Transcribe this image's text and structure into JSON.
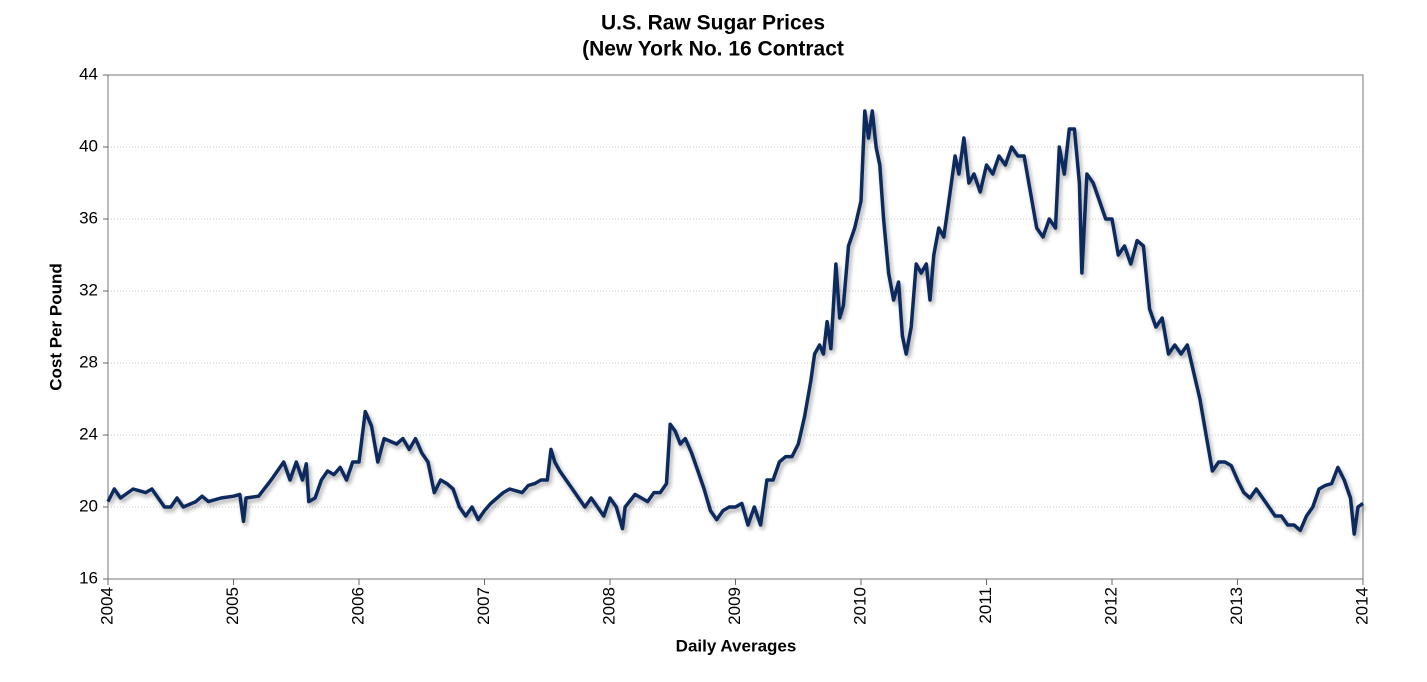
{
  "chart_data": {
    "type": "line",
    "title": "U.S. Raw Sugar Prices",
    "subtitle": "(New York No. 16 Contract",
    "x_label": "Daily Averages",
    "y_label": "Cost  Per  Pound",
    "grid": true,
    "xlim": [
      2004,
      2014
    ],
    "xticks": [
      2004,
      2005,
      2006,
      2007,
      2008,
      2009,
      2010,
      2011,
      2012,
      2013,
      2014
    ],
    "ylim": [
      16,
      44
    ],
    "yticks": [
      16,
      20,
      24,
      28,
      32,
      36,
      40,
      44
    ],
    "series": [
      {
        "name": "Raw Sugar",
        "color": "#0d2b5e",
        "x": [
          2004.0,
          2004.05,
          2004.1,
          2004.2,
          2004.3,
          2004.35,
          2004.4,
          2004.45,
          2004.5,
          2004.55,
          2004.6,
          2004.7,
          2004.75,
          2004.8,
          2004.9,
          2005.0,
          2005.05,
          2005.08,
          2005.1,
          2005.2,
          2005.3,
          2005.35,
          2005.4,
          2005.45,
          2005.5,
          2005.55,
          2005.58,
          2005.6,
          2005.65,
          2005.7,
          2005.75,
          2005.8,
          2005.85,
          2005.9,
          2005.95,
          2006.0,
          2006.05,
          2006.1,
          2006.15,
          2006.2,
          2006.3,
          2006.35,
          2006.4,
          2006.45,
          2006.5,
          2006.55,
          2006.6,
          2006.65,
          2006.7,
          2006.75,
          2006.8,
          2006.85,
          2006.9,
          2006.95,
          2007.0,
          2007.05,
          2007.1,
          2007.15,
          2007.2,
          2007.3,
          2007.35,
          2007.4,
          2007.45,
          2007.5,
          2007.53,
          2007.56,
          2007.6,
          2007.65,
          2007.7,
          2007.75,
          2007.8,
          2007.85,
          2007.9,
          2007.95,
          2008.0,
          2008.05,
          2008.1,
          2008.12,
          2008.2,
          2008.25,
          2008.3,
          2008.35,
          2008.4,
          2008.45,
          2008.48,
          2008.52,
          2008.56,
          2008.6,
          2008.65,
          2008.7,
          2008.75,
          2008.8,
          2008.85,
          2008.9,
          2008.95,
          2009.0,
          2009.05,
          2009.1,
          2009.15,
          2009.2,
          2009.25,
          2009.3,
          2009.35,
          2009.4,
          2009.45,
          2009.5,
          2009.55,
          2009.6,
          2009.63,
          2009.67,
          2009.7,
          2009.73,
          2009.76,
          2009.8,
          2009.83,
          2009.86,
          2009.9,
          2009.95,
          2010.0,
          2010.03,
          2010.06,
          2010.09,
          2010.12,
          2010.15,
          2010.18,
          2010.22,
          2010.26,
          2010.3,
          2010.33,
          2010.36,
          2010.4,
          2010.44,
          2010.48,
          2010.52,
          2010.55,
          2010.58,
          2010.62,
          2010.66,
          2010.7,
          2010.75,
          2010.78,
          2010.82,
          2010.86,
          2010.9,
          2010.95,
          2011.0,
          2011.05,
          2011.1,
          2011.15,
          2011.2,
          2011.25,
          2011.3,
          2011.35,
          2011.4,
          2011.45,
          2011.5,
          2011.55,
          2011.58,
          2011.62,
          2011.66,
          2011.7,
          2011.74,
          2011.76,
          2011.8,
          2011.85,
          2011.9,
          2011.95,
          2012.0,
          2012.05,
          2012.1,
          2012.15,
          2012.2,
          2012.25,
          2012.3,
          2012.35,
          2012.4,
          2012.45,
          2012.5,
          2012.55,
          2012.6,
          2012.65,
          2012.7,
          2012.75,
          2012.8,
          2012.85,
          2012.9,
          2012.95,
          2013.0,
          2013.05,
          2013.1,
          2013.15,
          2013.2,
          2013.25,
          2013.3,
          2013.35,
          2013.4,
          2013.45,
          2013.5,
          2013.55,
          2013.6,
          2013.65,
          2013.7,
          2013.75,
          2013.8,
          2013.85,
          2013.9,
          2013.93,
          2013.96,
          2014.0
        ],
        "values": [
          20.3,
          21.0,
          20.5,
          21.0,
          20.8,
          21.0,
          20.5,
          20.0,
          20.0,
          20.5,
          20.0,
          20.3,
          20.6,
          20.3,
          20.5,
          20.6,
          20.7,
          19.2,
          20.5,
          20.6,
          21.5,
          22.0,
          22.5,
          21.5,
          22.5,
          21.5,
          22.4,
          20.3,
          20.5,
          21.5,
          22.0,
          21.8,
          22.2,
          21.5,
          22.5,
          22.5,
          25.3,
          24.5,
          22.5,
          23.8,
          23.5,
          23.8,
          23.2,
          23.8,
          23.0,
          22.5,
          20.8,
          21.5,
          21.3,
          21.0,
          20.0,
          19.5,
          20.0,
          19.3,
          19.8,
          20.2,
          20.5,
          20.8,
          21.0,
          20.8,
          21.2,
          21.3,
          21.5,
          21.5,
          23.2,
          22.5,
          22.0,
          21.5,
          21.0,
          20.5,
          20.0,
          20.5,
          20.0,
          19.5,
          20.5,
          20.0,
          18.8,
          20.0,
          20.7,
          20.5,
          20.3,
          20.8,
          20.8,
          21.3,
          24.6,
          24.2,
          23.5,
          23.8,
          23.0,
          22.0,
          21.0,
          19.8,
          19.3,
          19.8,
          20.0,
          20.0,
          20.2,
          19.0,
          20.0,
          19.0,
          21.5,
          21.5,
          22.5,
          22.8,
          22.8,
          23.5,
          25.0,
          27.0,
          28.5,
          29.0,
          28.5,
          30.3,
          28.8,
          33.5,
          30.5,
          31.2,
          34.5,
          35.5,
          37.0,
          42.0,
          40.5,
          42.0,
          40.0,
          39.0,
          36.0,
          33.0,
          31.5,
          32.5,
          29.5,
          28.5,
          30.0,
          33.5,
          33.0,
          33.5,
          31.5,
          34.0,
          35.5,
          35.0,
          37.0,
          39.5,
          38.5,
          40.5,
          38.0,
          38.5,
          37.5,
          39.0,
          38.5,
          39.5,
          39.0,
          40.0,
          39.5,
          39.5,
          37.5,
          35.5,
          35.0,
          36.0,
          35.5,
          40.0,
          38.5,
          41.0,
          41.0,
          38.0,
          33.0,
          38.5,
          38.0,
          37.0,
          36.0,
          36.0,
          34.0,
          34.5,
          33.5,
          34.8,
          34.5,
          31.0,
          30.0,
          30.5,
          28.5,
          29.0,
          28.5,
          29.0,
          27.5,
          26.0,
          24.0,
          22.0,
          22.5,
          22.5,
          22.3,
          21.5,
          20.8,
          20.5,
          21.0,
          20.5,
          20.0,
          19.5,
          19.5,
          19.0,
          19.0,
          18.7,
          19.5,
          20.0,
          21.0,
          21.2,
          21.3,
          22.2,
          21.5,
          20.5,
          18.5,
          20.0,
          20.2
        ]
      }
    ]
  }
}
